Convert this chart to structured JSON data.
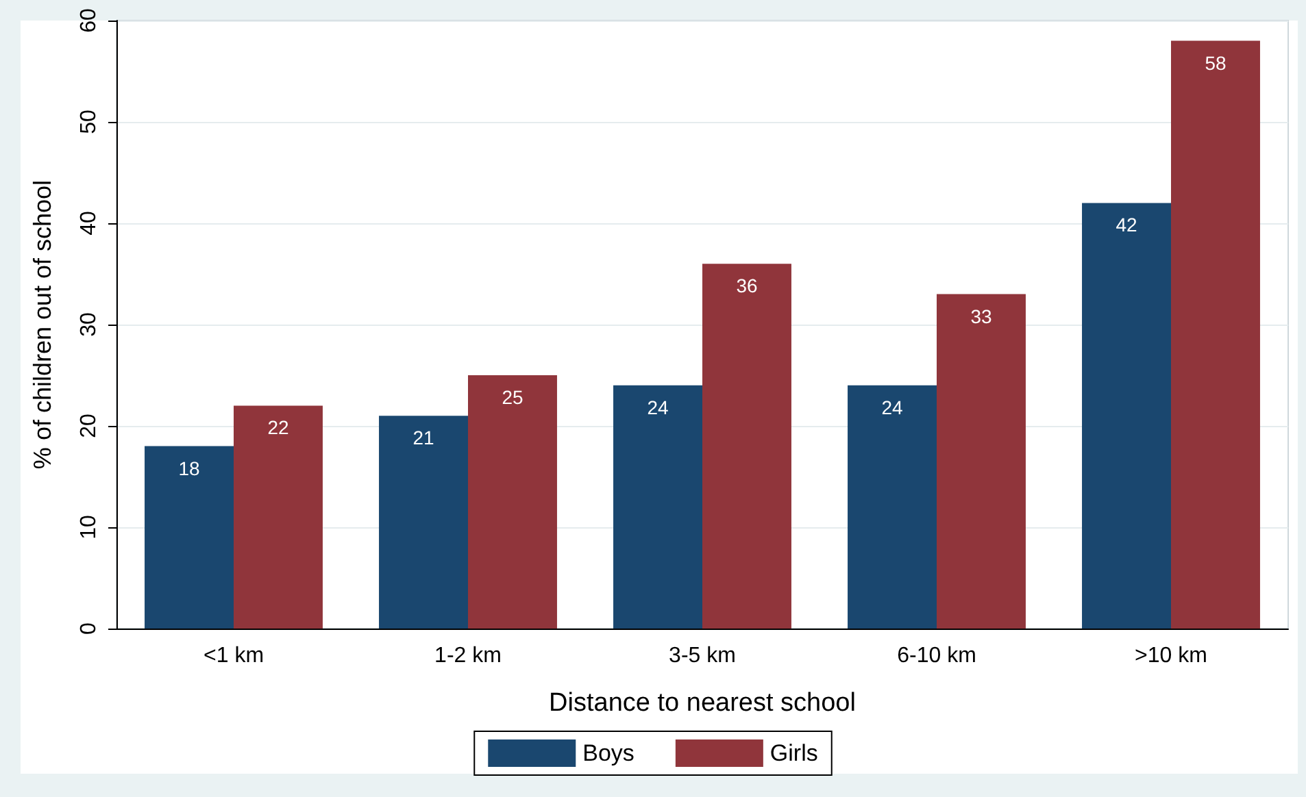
{
  "chart_data": {
    "type": "bar",
    "xlabel": "Distance to nearest school",
    "ylabel": "% of children out of school",
    "categories": [
      "<1 km",
      "1-2 km",
      "3-5 km",
      "6-10 km",
      ">10 km"
    ],
    "series": [
      {
        "name": "Boys",
        "color": "#1a476f",
        "values": [
          18,
          21,
          24,
          24,
          42
        ]
      },
      {
        "name": "Girls",
        "color": "#90353b",
        "values": [
          22,
          25,
          36,
          33,
          58
        ]
      }
    ],
    "ylim": [
      0,
      60
    ],
    "yticks": [
      0,
      10,
      20,
      30,
      40,
      50,
      60
    ],
    "grid": "y",
    "legend": "bottom",
    "data_labels": true
  }
}
